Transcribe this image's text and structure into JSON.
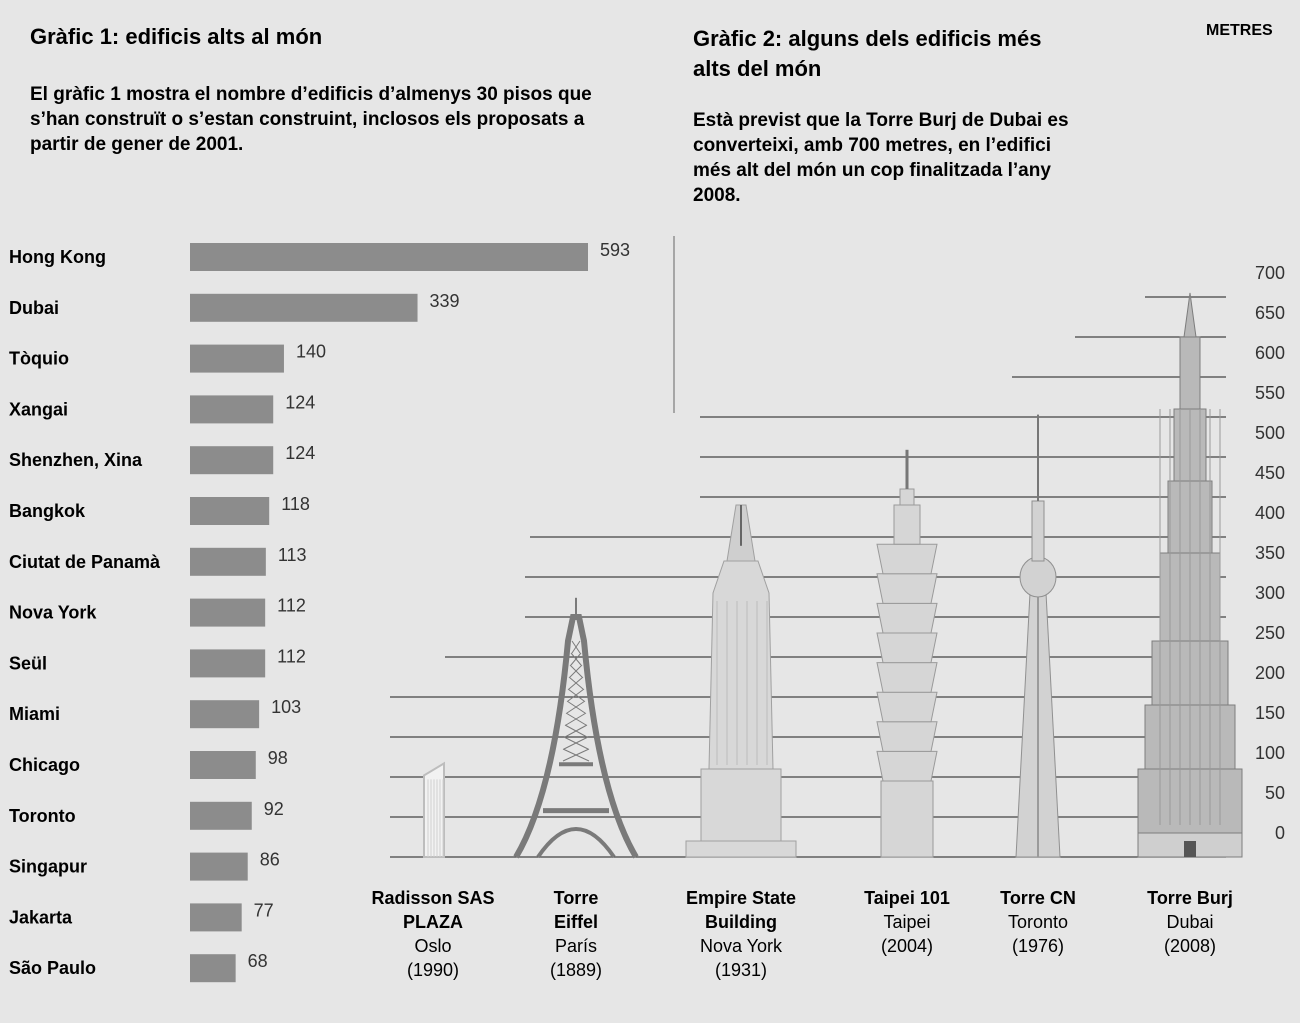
{
  "chart1": {
    "title": "Gràfic 1: edificis alts al món",
    "description": "El gràfic 1 mostra el nombre d’edificis d’almenys 30 pisos que s’han construït o s’estan construint, inclosos els proposats a partir de gener de 2001."
  },
  "chart2": {
    "title": "Gràfic 2: alguns dels edificis més alts del món",
    "description": "Està previst que la Torre Burj de Dubai es converteixi, amb 700 metres, en l’edifici més alt del món un cop finalitzada l’any 2008.",
    "unit_label": "METRES"
  },
  "chart_data": [
    {
      "type": "bar",
      "orientation": "horizontal",
      "categories": [
        "Hong Kong",
        "Dubai",
        "Tòquio",
        "Xangai",
        "Shenzhen, Xina",
        "Bangkok",
        "Ciutat de Panamà",
        "Nova York",
        "Seül",
        "Miami",
        "Chicago",
        "Toronto",
        "Singapur",
        "Jakarta",
        "São Paulo"
      ],
      "values": [
        593,
        339,
        140,
        124,
        124,
        118,
        113,
        112,
        112,
        103,
        98,
        92,
        86,
        77,
        68
      ],
      "bar_color": "#8c8c8c"
    },
    {
      "type": "bar",
      "categories": [
        "Radisson SAS PLAZA",
        "Torre Eiffel",
        "Empire State Building",
        "Taipei 101",
        "Torre CN",
        "Torre Burj"
      ],
      "cities": [
        "Oslo",
        "París",
        "Nova York",
        "Taipei",
        "Toronto",
        "Dubai"
      ],
      "years": [
        "(1990)",
        "(1889)",
        "(1931)",
        "(2004)",
        "(1976)",
        "(2008)"
      ],
      "values": [
        117,
        324,
        381,
        509,
        553,
        700
      ],
      "ylabel": "METRES",
      "yticks": [
        0,
        50,
        100,
        150,
        200,
        250,
        300,
        350,
        400,
        450,
        500,
        550,
        600,
        650,
        700
      ],
      "ylim": [
        0,
        700
      ],
      "grid": true
    }
  ]
}
